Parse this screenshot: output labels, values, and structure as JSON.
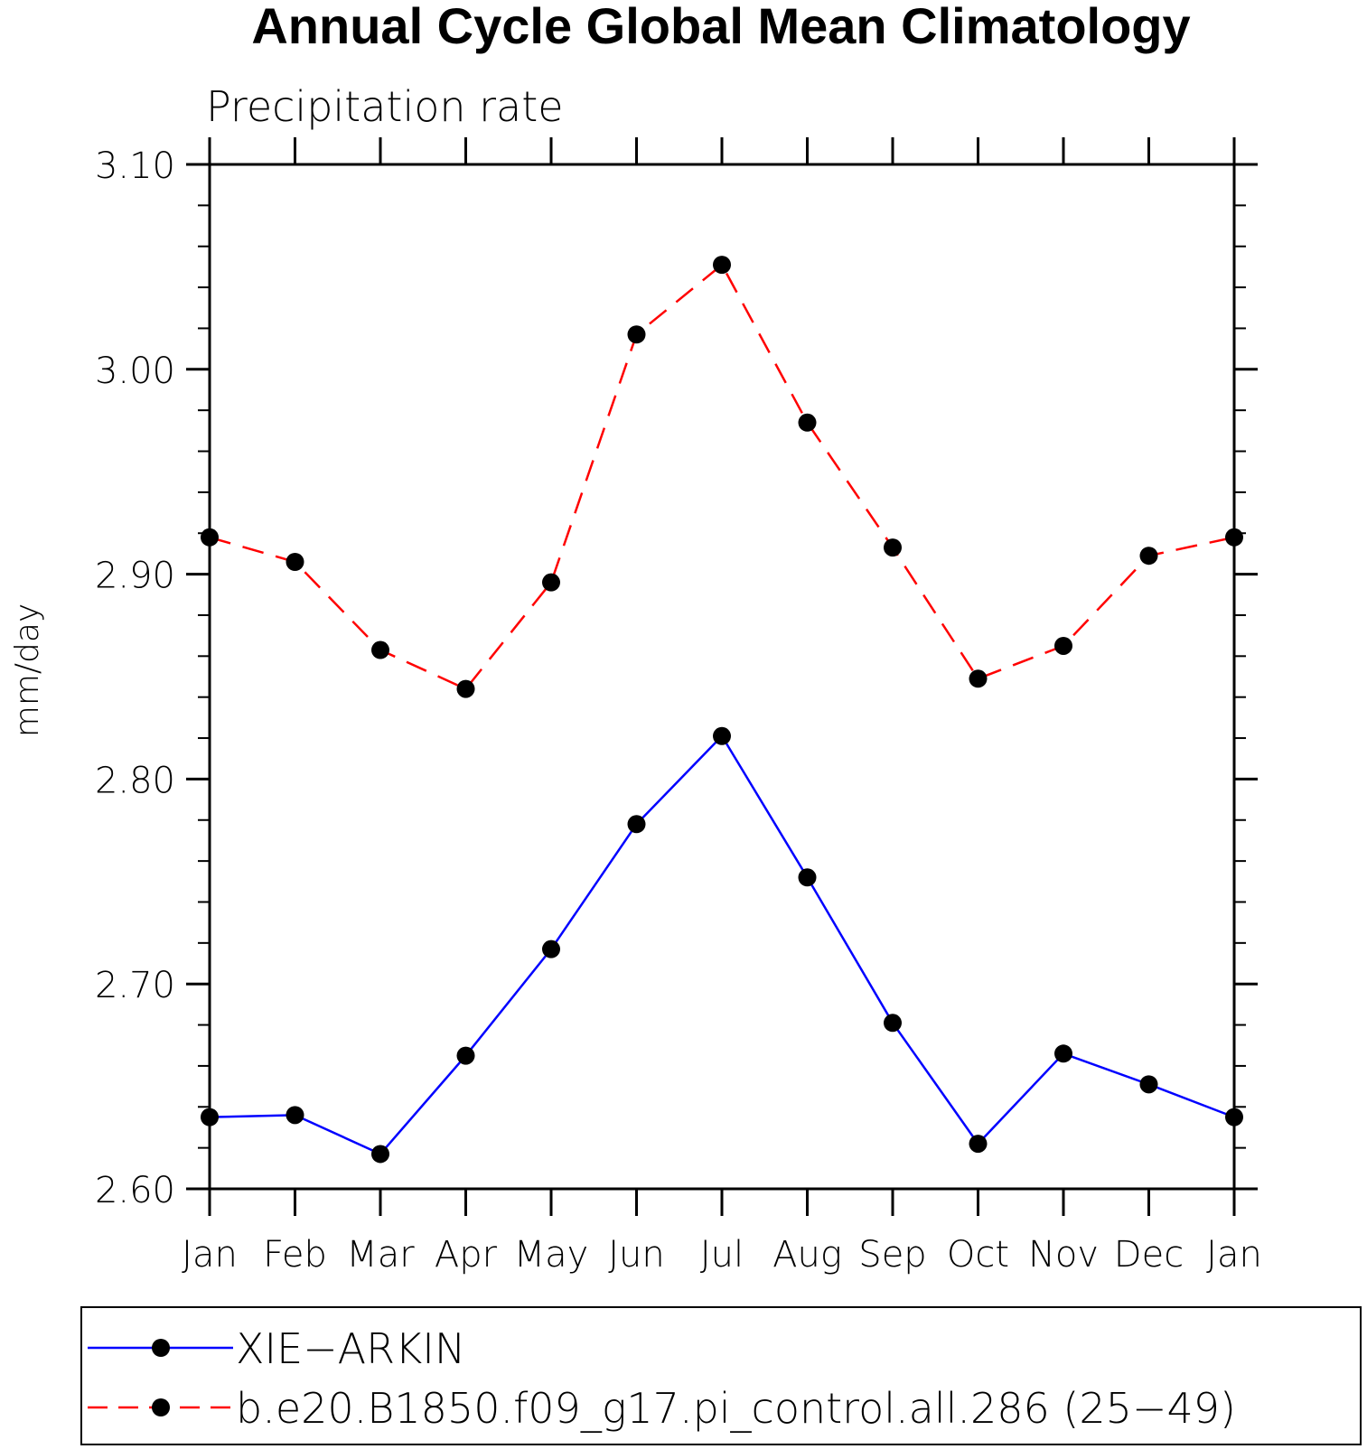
{
  "chart_data": {
    "type": "line",
    "title": "Annual Cycle Global Mean Climatology",
    "subtitle": "Precipitation rate",
    "xlabel": "",
    "ylabel": "mm/day",
    "categories": [
      "Jan",
      "Feb",
      "Mar",
      "Apr",
      "May",
      "Jun",
      "Jul",
      "Aug",
      "Sep",
      "Oct",
      "Nov",
      "Dec",
      "Jan"
    ],
    "ylim": [
      2.6,
      3.1
    ],
    "yticks": [
      "2.60",
      "2.70",
      "2.80",
      "2.90",
      "3.00",
      "3.10"
    ],
    "grid": false,
    "legend_position": "bottom",
    "series": [
      {
        "name": "XIE−ARKIN",
        "color": "#0000ff",
        "line_style": "solid",
        "marker": "filled-circle",
        "values": [
          2.635,
          2.636,
          2.617,
          2.665,
          2.717,
          2.778,
          2.821,
          2.752,
          2.681,
          2.622,
          2.666,
          2.651,
          2.635
        ]
      },
      {
        "name": "b.e20.B1850.f09_g17.pi_control.all.286 (25−49)",
        "color": "#ff0000",
        "line_style": "dashed",
        "marker": "filled-circle",
        "values": [
          2.918,
          2.906,
          2.863,
          2.844,
          2.896,
          3.017,
          3.051,
          2.974,
          2.913,
          2.849,
          2.865,
          2.909,
          2.918
        ]
      }
    ]
  }
}
